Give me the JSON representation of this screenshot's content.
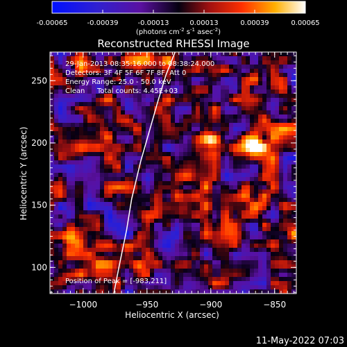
{
  "colorbar": {
    "ticks": [
      "-0.00065",
      "-0.00039",
      "-0.00013",
      "0.00013",
      "0.00039",
      "0.00065"
    ],
    "units_main": "(photons cm",
    "units_exp1": "-2",
    "units_mid": " s",
    "units_exp2": "-1",
    "units_end": " asec",
    "units_exp3": "-2",
    "units_close": ")"
  },
  "footer_timestamp": "11-May-2022 07:03",
  "chart_data": {
    "type": "heatmap",
    "title": "Reconstructed RHESSI Image",
    "xlabel": "Heliocentric X (arcsec)",
    "ylabel": "Heliocentric Y (arcsec)",
    "xlim": [
      -1026,
      -833
    ],
    "ylim": [
      79,
      273
    ],
    "xticks": [
      -1000,
      -950,
      -900,
      -850
    ],
    "yticks": [
      100,
      150,
      200,
      250
    ],
    "xtick_labels": [
      "−1000",
      "−950",
      "−900",
      "−850"
    ],
    "ytick_labels": [
      "100",
      "150",
      "200",
      "250"
    ],
    "colorbar_range": [
      -0.00065,
      0.00065
    ],
    "colormap": "purple-black-red-yellow-white (IDL color table)",
    "annotations": [
      "29-Jan-2013 08:35:16.000 to 08:38:24.000",
      "Detectors: 3F 4F 5F 6F 7F 8F, Att 0",
      "Energy Range: 25.0 - 50.0 keV",
      "Clean",
      "Total counts: 4.45E+03"
    ],
    "peak_label": "Position of Peak = [-983,211]",
    "peak_position": [
      -983,
      211
    ],
    "limb_curve": [
      [
        -976,
        79
      ],
      [
        -972,
        100
      ],
      [
        -966,
        130
      ],
      [
        -962,
        155
      ],
      [
        -955,
        185
      ],
      [
        -948,
        210
      ],
      [
        -941,
        235
      ],
      [
        -935,
        255
      ],
      [
        -928,
        273
      ]
    ],
    "bright_sources": [
      {
        "x": -983,
        "y": 211,
        "strength": 1.0
      },
      {
        "x": -1010,
        "y": 125,
        "strength": 0.6
      },
      {
        "x": -955,
        "y": 95,
        "strength": 0.55
      },
      {
        "x": -865,
        "y": 200,
        "strength": 0.6
      },
      {
        "x": -900,
        "y": 200,
        "strength": 0.45
      },
      {
        "x": -1015,
        "y": 90,
        "strength": 0.55
      },
      {
        "x": -925,
        "y": 145,
        "strength": 0.4
      }
    ]
  }
}
